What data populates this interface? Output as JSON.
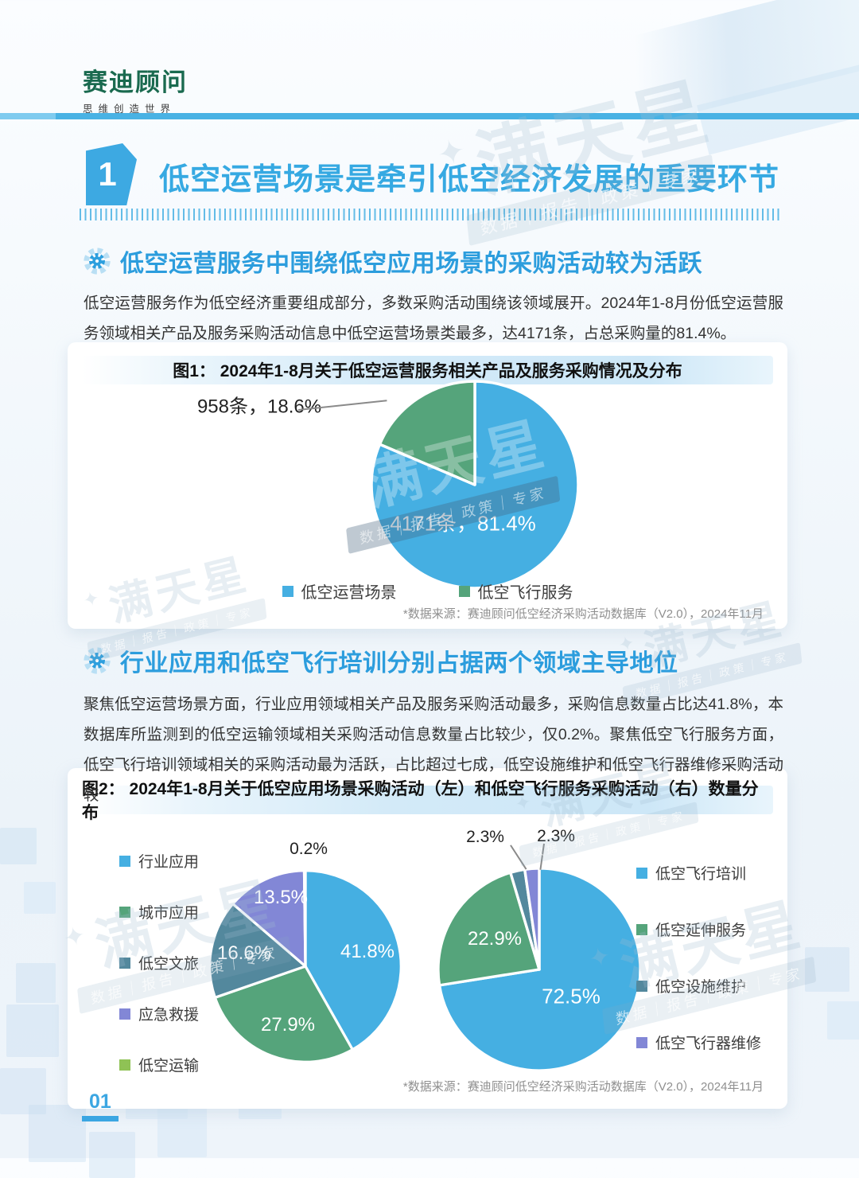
{
  "page": {
    "brand": {
      "logo": "赛迪顾问",
      "tagline": "思维创造世界"
    },
    "page_number": "01",
    "watermark": {
      "star": "✦",
      "name": "满天星",
      "tagline": "数据｜报告｜政策｜专家"
    }
  },
  "section": {
    "number": "1",
    "title": "低空运营场景是牵引低空经济发展的重要环节"
  },
  "sub1": {
    "heading": "低空运营服务中围绕低空应用场景的采购活动较为活跃",
    "body": "低空运营服务作为低空经济重要组成部分，多数采购活动围绕该领域展开。2024年1-8月份低空运营服务领域相关产品及服务采购活动信息中低空运营场景类最多，达4171条，占总采购量的81.4%。"
  },
  "sub2": {
    "heading": "行业应用和低空飞行培训分别占据两个领域主导地位",
    "body": "聚焦低空运营场景方面，行业应用领域相关产品及服务采购活动最多，采购信息数量占比达41.8%，本数据库所监测到的低空运输领域相关采购活动信息数量占比较少，仅0.2%。聚焦低空飞行服务方面，低空飞行培训领域相关的采购活动最为活跃，占比超过七成，低空设施维护和低空飞行器维修采购活动较"
  },
  "fig1": {
    "title": "图1：  2024年1-8月关于低空运营服务相关产品及服务采购情况及分布",
    "callout_label": "958条，18.6%",
    "inner_label": "4171条，81.4%",
    "source": "*数据来源：赛迪顾问低空经济采购活动数据库（V2.0），2024年11月"
  },
  "fig2": {
    "title": "图2：  2024年1-8月关于低空应用场景采购活动（左）和低空飞行服务采购活动（右）数量分布",
    "source": "*数据来源：赛迪顾问低空经济采购活动数据库（V2.0），2024年11月"
  },
  "chart_data": [
    {
      "type": "pie",
      "title": "2024年1-8月关于低空运营服务相关产品及服务采购情况及分布",
      "legend_position": "bottom",
      "start_angle_deg": 0,
      "direction": "clockwise",
      "slices": [
        {
          "label": "低空运营场景",
          "count": 4171,
          "pct": 81.4,
          "pct_label": "4171条，81.4%",
          "color": "#45afe2"
        },
        {
          "label": "低空飞行服务",
          "count": 958,
          "pct": 18.6,
          "pct_label": "958条，18.6%",
          "color": "#55a47b"
        }
      ]
    },
    {
      "type": "pie",
      "title": "2024年1-8月关于低空应用场景采购活动数量分布（左）",
      "legend_position": "left",
      "start_angle_deg": 0,
      "direction": "clockwise",
      "slices": [
        {
          "label": "行业应用",
          "pct": 41.8,
          "pct_label": "41.8%",
          "color": "#45afe2"
        },
        {
          "label": "城市应用",
          "pct": 27.9,
          "pct_label": "27.9%",
          "color": "#55a47b"
        },
        {
          "label": "低空文旅",
          "pct": 16.6,
          "pct_label": "16.6%",
          "color": "#53889d"
        },
        {
          "label": "应急救援",
          "pct": 13.5,
          "pct_label": "13.5%",
          "color": "#8287d6"
        },
        {
          "label": "低空运输",
          "pct": 0.2,
          "pct_label": "0.2%",
          "color": "#8fc255"
        }
      ]
    },
    {
      "type": "pie",
      "title": "2024年1-8月关于低空飞行服务采购活动数量分布（右）",
      "legend_position": "right",
      "start_angle_deg": 0,
      "direction": "clockwise",
      "slices": [
        {
          "label": "低空飞行培训",
          "pct": 72.5,
          "pct_label": "72.5%",
          "color": "#45afe2"
        },
        {
          "label": "低空延伸服务",
          "pct": 22.9,
          "pct_label": "22.9%",
          "color": "#55a47b"
        },
        {
          "label": "低空设施维护",
          "pct": 2.3,
          "pct_label": "2.3%",
          "color": "#53889d"
        },
        {
          "label": "低空飞行器维修",
          "pct": 2.3,
          "pct_label": "2.3%",
          "color": "#8287d6"
        }
      ]
    }
  ]
}
